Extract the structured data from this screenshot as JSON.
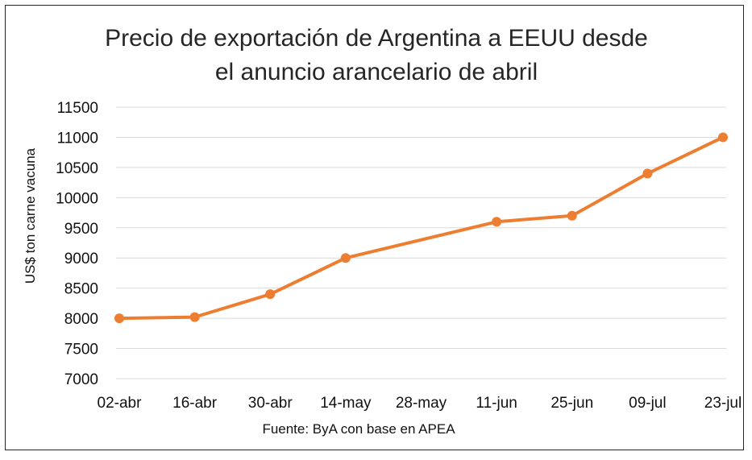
{
  "chart_data": {
    "type": "line",
    "title_lines": [
      "Precio de exportación de Argentina a EEUU desde",
      "el anuncio arancelario de abril"
    ],
    "ylabel": "US$ ton carne vacuna",
    "xlabel": "",
    "source": "Fuente: ByA con base en APEA",
    "categories": [
      "02-abr",
      "16-abr",
      "30-abr",
      "14-may",
      "28-may",
      "11-jun",
      "25-jun",
      "09-jul",
      "23-jul"
    ],
    "points": [
      {
        "x": "02-abr",
        "y": 8000
      },
      {
        "x": "16-abr",
        "y": 8020
      },
      {
        "x": "30-abr",
        "y": 8400
      },
      {
        "x": "14-may",
        "y": 9000
      },
      {
        "x": "11-jun",
        "y": 9600
      },
      {
        "x": "25-jun",
        "y": 9700
      },
      {
        "x": "09-jul",
        "y": 10400
      },
      {
        "x": "23-jul",
        "y": 11000
      }
    ],
    "ylim": [
      7000,
      11500
    ],
    "yticks": [
      7000,
      7500,
      8000,
      8500,
      9000,
      9500,
      10000,
      10500,
      11000,
      11500
    ],
    "grid": true,
    "legend": "none",
    "colors": {
      "line": "#ED7D31",
      "grid": "#D9D9D9",
      "text": "#262626"
    }
  }
}
